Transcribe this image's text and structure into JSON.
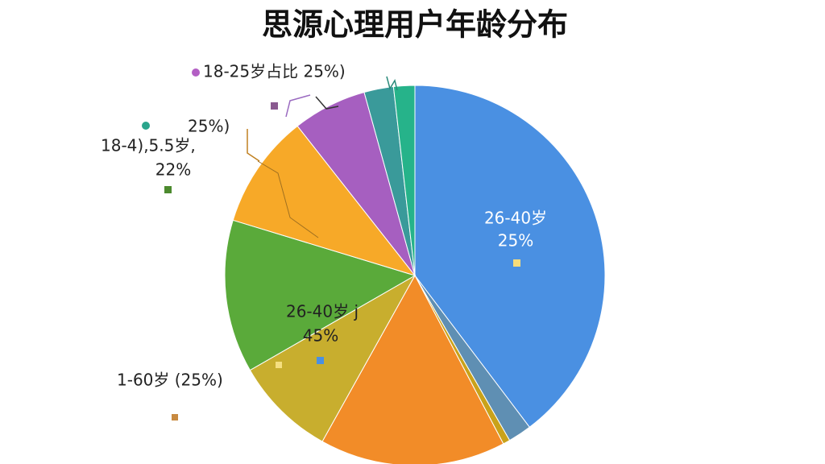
{
  "chart_data": {
    "type": "pie",
    "title": "思源心理用户年龄分布",
    "categories": [
      null,
      null,
      null,
      null,
      null,
      null,
      null,
      null,
      null,
      null
    ],
    "values": [
      39.7,
      2.0,
      0.6,
      15.8,
      8.6,
      13.0,
      9.7,
      6.3,
      2.5,
      1.8
    ],
    "colors": [
      "#4a90e2",
      "#5f8fb3",
      "#c9a21a",
      "#f28c28",
      "#c8ae2e",
      "#5aaa3a",
      "#f7a928",
      "#a65fc0",
      "#3a9a9a",
      "#26b38a"
    ],
    "annotations": [
      "18-25岁占比 25%)",
      "25%)",
      "18-4),5.5岁,",
      "22%",
      "26-40岁",
      "25%",
      "26-40岁 j",
      "45%",
      "1-60岁 (25%)"
    ]
  }
}
